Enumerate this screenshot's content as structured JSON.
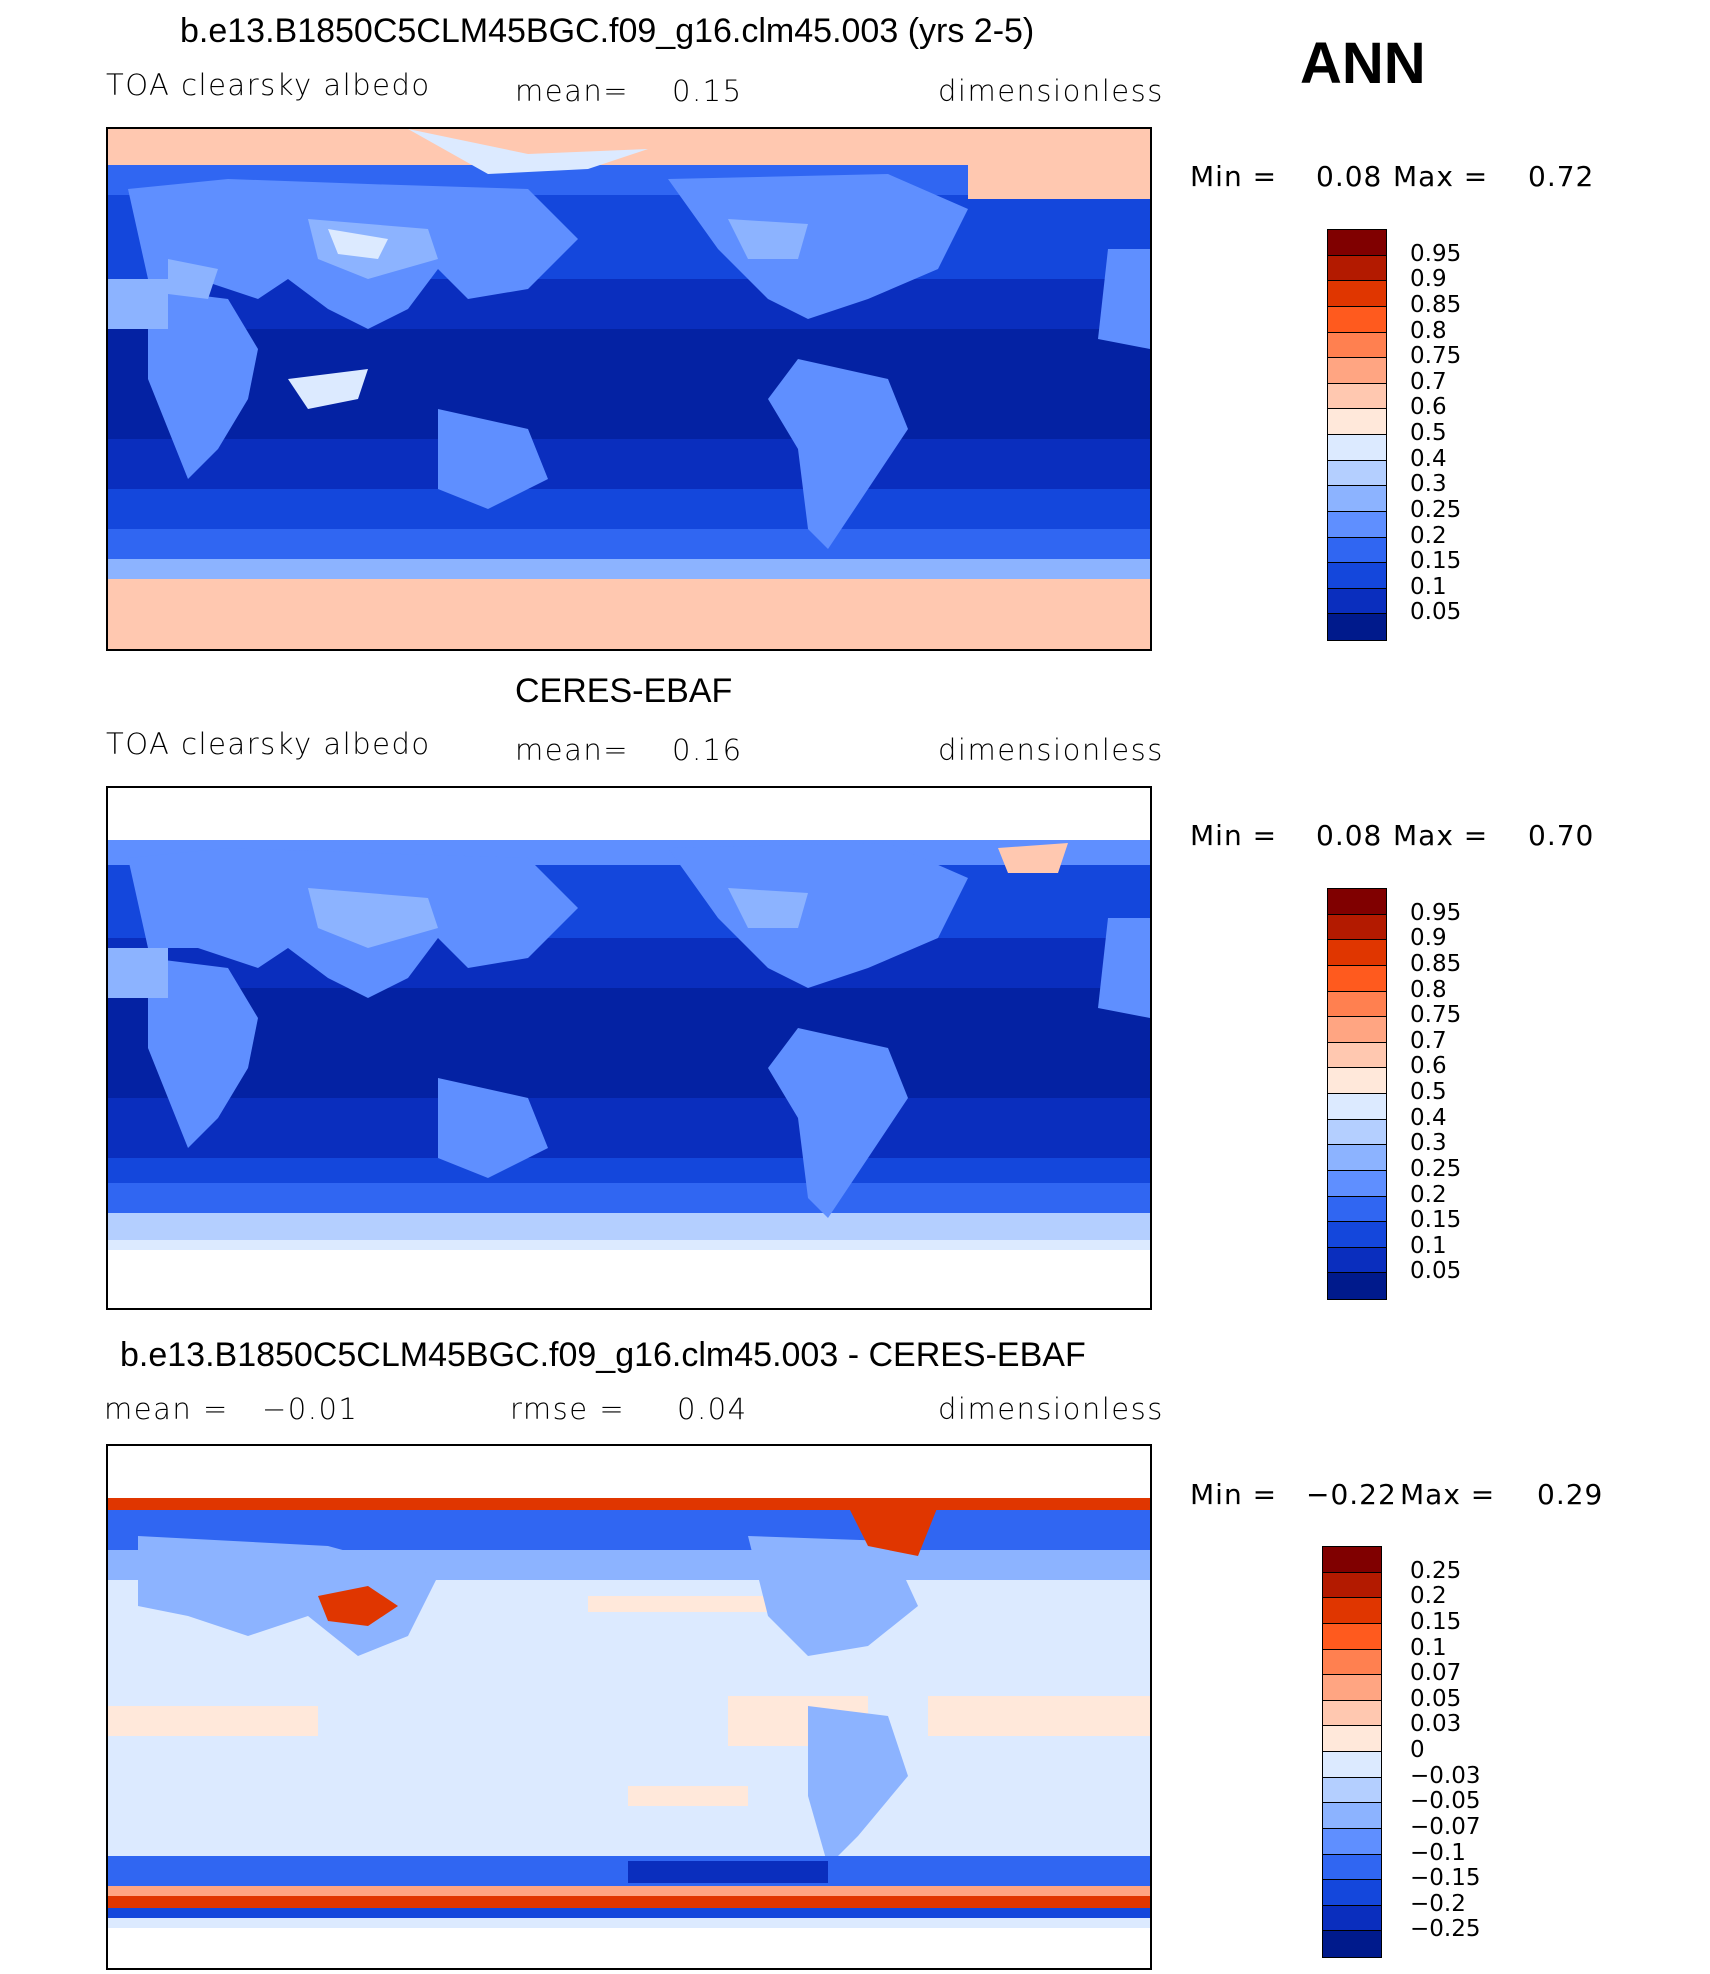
{
  "season": "ANN",
  "panels": [
    {
      "title": "b.e13.B1850C5CLM45BGC.f09_g16.clm45.003 (yrs 2-5)",
      "left_label": "TOA clearsky albedo",
      "mean_label": "mean=",
      "mean_value": "0.15",
      "units": "dimensionless",
      "min_label": "Min =",
      "min_value": "0.08",
      "max_label": "Max =",
      "max_value": "0.72",
      "colorbar_labels": [
        "0.95",
        "0.9",
        "0.85",
        "0.8",
        "0.75",
        "0.7",
        "0.6",
        "0.5",
        "0.4",
        "0.3",
        "0.25",
        "0.2",
        "0.15",
        "0.1",
        "0.05"
      ],
      "colorbar_colors": [
        "#800000",
        "#b31a00",
        "#e03600",
        "#ff5a1e",
        "#ff8050",
        "#ffa582",
        "#ffc8b0",
        "#ffe8da",
        "#dceaff",
        "#b4cfff",
        "#8cb3ff",
        "#5f8fff",
        "#3066f2",
        "#1447dc",
        "#0a2ebe",
        "#001a8c"
      ]
    },
    {
      "title": "CERES-EBAF",
      "left_label": "TOA clearsky albedo",
      "mean_label": "mean=",
      "mean_value": "0.16",
      "units": "dimensionless",
      "min_label": "Min =",
      "min_value": "0.08",
      "max_label": "Max =",
      "max_value": "0.70",
      "colorbar_labels": [
        "0.95",
        "0.9",
        "0.85",
        "0.8",
        "0.75",
        "0.7",
        "0.6",
        "0.5",
        "0.4",
        "0.3",
        "0.25",
        "0.2",
        "0.15",
        "0.1",
        "0.05"
      ],
      "colorbar_colors": [
        "#800000",
        "#b31a00",
        "#e03600",
        "#ff5a1e",
        "#ff8050",
        "#ffa582",
        "#ffc8b0",
        "#ffe8da",
        "#dceaff",
        "#b4cfff",
        "#8cb3ff",
        "#5f8fff",
        "#3066f2",
        "#1447dc",
        "#0a2ebe",
        "#001a8c"
      ]
    },
    {
      "title": "b.e13.B1850C5CLM45BGC.f09_g16.clm45.003 - CERES-EBAF",
      "mean_label": "mean =",
      "mean_value": "−0.01",
      "rmse_label": "rmse =",
      "rmse_value": "0.04",
      "units": "dimensionless",
      "min_label": "Min =",
      "min_value": "−0.22",
      "max_label": "Max =",
      "max_value": "0.29",
      "colorbar_labels": [
        "0.25",
        "0.2",
        "0.15",
        "0.1",
        "0.07",
        "0.05",
        "0.03",
        "0",
        "−0.03",
        "−0.05",
        "−0.07",
        "−0.1",
        "−0.15",
        "−0.2",
        "−0.25"
      ],
      "colorbar_colors": [
        "#800000",
        "#b31a00",
        "#e03600",
        "#ff5a1e",
        "#ff8050",
        "#ffa582",
        "#ffc8b0",
        "#ffe8da",
        "#dceaff",
        "#b4cfff",
        "#8cb3ff",
        "#5f8fff",
        "#3066f2",
        "#1447dc",
        "#0a2ebe",
        "#001a8c"
      ]
    }
  ]
}
